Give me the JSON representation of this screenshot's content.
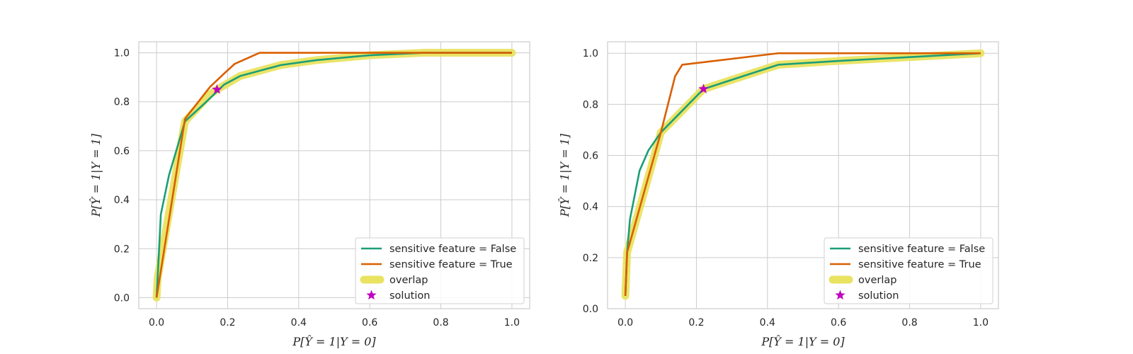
{
  "chart_data": [
    {
      "type": "line",
      "xlabel": "P[Ŷ = 1|Y = 0]",
      "ylabel": "P[Ŷ = 1|Y = 1]",
      "xlim": [
        -0.05,
        1.05
      ],
      "ylim": [
        -0.045,
        1.045
      ],
      "xticks": [
        "0.0",
        "0.2",
        "0.4",
        "0.6",
        "0.8",
        "1.0"
      ],
      "yticks": [
        "0.0",
        "0.2",
        "0.4",
        "0.6",
        "0.8",
        "1.0"
      ],
      "grid": true,
      "legend_position": "lower-right",
      "series": [
        {
          "name": "sensitive feature = False",
          "color": "#1b9e77",
          "x": [
            0.0,
            0.003,
            0.012,
            0.035,
            0.08,
            0.14,
            0.19,
            0.235,
            0.35,
            0.45,
            0.6,
            0.75,
            1.0
          ],
          "y": [
            0.0,
            0.08,
            0.34,
            0.5,
            0.72,
            0.8,
            0.87,
            0.905,
            0.95,
            0.97,
            0.99,
            1.0,
            1.0
          ]
        },
        {
          "name": "sensitive feature = True",
          "color": "#d95f02",
          "x": [
            0.0,
            0.08,
            0.15,
            0.19,
            0.22,
            0.29,
            1.0
          ],
          "y": [
            0.0,
            0.73,
            0.86,
            0.915,
            0.955,
            1.0,
            1.0
          ]
        },
        {
          "name": "overlap",
          "color": "#e9e361",
          "x": [
            0.0,
            0.003,
            0.08,
            0.15,
            0.17,
            0.235,
            0.35,
            0.45,
            0.6,
            0.75,
            1.0
          ],
          "y": [
            0.0,
            0.08,
            0.72,
            0.83,
            0.85,
            0.905,
            0.95,
            0.97,
            0.99,
            1.0,
            1.0
          ]
        }
      ],
      "solution": {
        "name": "solution",
        "color": "#c000c0",
        "x": 0.17,
        "y": 0.85
      }
    },
    {
      "type": "line",
      "xlabel": "P[Ŷ = 1|Y = 0]",
      "ylabel": "P[Ŷ = 1|Y = 1]",
      "xlim": [
        -0.05,
        1.05
      ],
      "ylim": [
        0.0,
        1.045
      ],
      "xticks": [
        "0.0",
        "0.2",
        "0.4",
        "0.6",
        "0.8",
        "1.0"
      ],
      "yticks": [
        "0.0",
        "0.2",
        "0.4",
        "0.6",
        "0.8",
        "1.0"
      ],
      "grid": true,
      "legend_position": "lower-right",
      "series": [
        {
          "name": "sensitive feature = False",
          "color": "#1b9e77",
          "x": [
            0.0,
            0.005,
            0.013,
            0.04,
            0.065,
            0.1,
            0.22,
            0.43,
            0.6,
            1.0
          ],
          "y": [
            0.05,
            0.22,
            0.35,
            0.54,
            0.62,
            0.69,
            0.86,
            0.955,
            0.97,
            1.0
          ]
        },
        {
          "name": "sensitive feature = True",
          "color": "#d95f02",
          "x": [
            0.0,
            0.005,
            0.1,
            0.14,
            0.16,
            0.43,
            1.0
          ],
          "y": [
            0.05,
            0.22,
            0.69,
            0.91,
            0.955,
            1.0,
            1.0
          ]
        },
        {
          "name": "overlap",
          "color": "#e9e361",
          "x": [
            0.0,
            0.005,
            0.1,
            0.22,
            0.43,
            0.6,
            1.0
          ],
          "y": [
            0.05,
            0.22,
            0.69,
            0.86,
            0.955,
            0.97,
            1.0
          ]
        }
      ],
      "solution": {
        "name": "solution",
        "color": "#c000c0",
        "x": 0.22,
        "y": 0.86
      }
    }
  ]
}
